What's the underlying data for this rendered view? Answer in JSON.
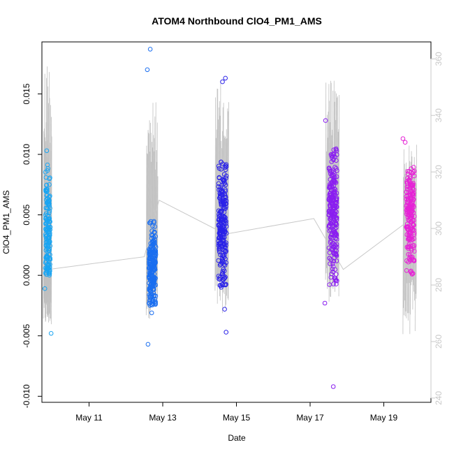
{
  "chart_data": {
    "type": "scatter",
    "title": "ATOM4 Northbound ClO4_PM1_AMS",
    "xlabel": "Date",
    "ylabel": "ClO4_PM1_AMS",
    "x_tick_labels": [
      "May 11",
      "May 13",
      "May 15",
      "May 17",
      "May 19"
    ],
    "x_tick_days": [
      11,
      13,
      15,
      17,
      19
    ],
    "xlim_days": [
      9.72,
      20.28
    ],
    "ylim": [
      -0.0105,
      0.0193
    ],
    "y_ticks": [
      -0.01,
      -0.005,
      0.0,
      0.005,
      0.01,
      0.015
    ],
    "y_tick_labels": [
      "-0.010",
      "-0.005",
      "0.000",
      "0.005",
      "0.010",
      "0.015"
    ],
    "y2lim": [
      238.5,
      366.0
    ],
    "y2_ticks": [
      240,
      260,
      280,
      300,
      320,
      340,
      360
    ],
    "y2_tick_labels": [
      "240",
      "260",
      "280",
      "300",
      "320",
      "340",
      "360"
    ],
    "y2_color": "#c8c8c8",
    "grid": false,
    "legend": "none",
    "flights": [
      {
        "date_day": 9.88,
        "width_days": 0.24,
        "color": "#1aa5f2",
        "y_low": 0.0,
        "y_high": 0.0095,
        "y_center": 0.0035,
        "n": 170,
        "outliers": [
          {
            "x_day": 9.97,
            "y": -0.0048
          },
          {
            "x_day": 9.85,
            "y": 0.0103
          },
          {
            "x_day": 9.8,
            "y": -0.0011
          }
        ],
        "y2_low": 265,
        "y2_high": 362,
        "y2_mean": 285.5
      },
      {
        "date_day": 12.72,
        "width_days": 0.34,
        "color": "#1a6ef0",
        "y_low": -0.0025,
        "y_high": 0.0045,
        "y_center": 0.0005,
        "n": 210,
        "outliers": [
          {
            "x_day": 12.66,
            "y": 0.0187
          },
          {
            "x_day": 12.58,
            "y": 0.017
          },
          {
            "x_day": 12.6,
            "y": -0.0057
          },
          {
            "x_day": 12.7,
            "y": -0.0031
          }
        ],
        "y2_low": 268,
        "y2_high": 345,
        "y2_mean": 296.5
      },
      {
        "date_day": 14.62,
        "width_days": 0.4,
        "color": "#2a22e8",
        "y_low": -0.001,
        "y_high": 0.0095,
        "y_center": 0.004,
        "n": 230,
        "outliers": [
          {
            "x_day": 14.7,
            "y": 0.0163
          },
          {
            "x_day": 14.62,
            "y": 0.016
          },
          {
            "x_day": 14.72,
            "y": -0.0047
          },
          {
            "x_day": 14.68,
            "y": -0.0028
          }
        ],
        "y2_low": 270,
        "y2_high": 352,
        "y2_mean": 298.0
      },
      {
        "date_day": 17.62,
        "width_days": 0.4,
        "color": "#8a1ef0",
        "y_low": -0.001,
        "y_high": 0.0105,
        "y_center": 0.005,
        "n": 240,
        "outliers": [
          {
            "x_day": 17.63,
            "y": -0.0092
          },
          {
            "x_day": 17.4,
            "y": -0.0023
          },
          {
            "x_day": 17.42,
            "y": 0.0128
          }
        ],
        "y2_low": 274,
        "y2_high": 355,
        "y2_mean": 303.0
      },
      {
        "date_day": 19.72,
        "width_days": 0.4,
        "color": "#e622d6",
        "y_low": 0.0,
        "y_high": 0.009,
        "y_center": 0.0045,
        "n": 200,
        "outliers": [
          {
            "x_day": 19.52,
            "y": 0.0113
          },
          {
            "x_day": 19.58,
            "y": 0.011
          }
        ],
        "y2_low": 262,
        "y2_high": 330,
        "y2_mean": 302.0
      }
    ],
    "y2_trend": [
      {
        "x_day": 9.9,
        "y2": 285.5
      },
      {
        "x_day": 12.5,
        "y2": 290.0
      },
      {
        "x_day": 12.9,
        "y2": 310.0
      },
      {
        "x_day": 14.7,
        "y2": 298.0
      },
      {
        "x_day": 17.1,
        "y2": 303.5
      },
      {
        "x_day": 17.9,
        "y2": 285.5
      },
      {
        "x_day": 19.7,
        "y2": 303.0
      }
    ]
  }
}
